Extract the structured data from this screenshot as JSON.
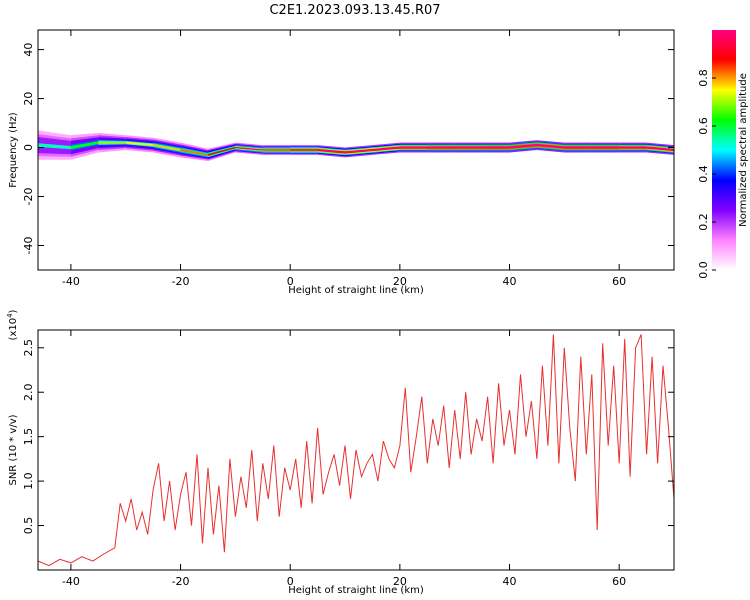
{
  "title": "C2E1.2023.093.13.45.R07",
  "chart_data": [
    {
      "type": "heatmap",
      "xlabel": "Height of straight line (km)",
      "ylabel": "Frequency (Hz)",
      "xlim": [
        -46,
        70
      ],
      "ylim": [
        -50,
        48
      ],
      "x_ticks": [
        -40,
        -20,
        0,
        20,
        40,
        60
      ],
      "y_ticks": [
        -40,
        -20,
        0,
        20,
        40
      ],
      "x_tick_labels": [
        "-40",
        "-20",
        "0",
        "20",
        "40",
        "60"
      ],
      "y_tick_labels": [
        "-40",
        "-20",
        "0",
        "20",
        "40"
      ],
      "grid": false,
      "colorbar": {
        "label": "Normalized spectral amplitude",
        "range": [
          0.0,
          1.0
        ],
        "ticks": [
          0.0,
          0.2,
          0.4,
          0.6,
          0.8
        ],
        "tick_labels": [
          "0.0",
          "0.2",
          "0.4",
          "0.6",
          "0.8"
        ],
        "colormap": [
          "#ffffff",
          "#ff80ff",
          "#8000ff",
          "#0000ff",
          "#00ffff",
          "#00ff00",
          "#ffff00",
          "#ff0000",
          "#ff0080"
        ]
      },
      "ridge": {
        "x": [
          -46,
          -40,
          -35,
          -30,
          -25,
          -20,
          -15,
          -10,
          -5,
          0,
          5,
          10,
          15,
          20,
          25,
          30,
          35,
          40,
          45,
          50,
          55,
          60,
          65,
          70
        ],
        "frequency": [
          1,
          0,
          2,
          2,
          1,
          -1,
          -3,
          0,
          -1,
          -1,
          -1,
          -2,
          -1,
          0,
          0,
          0,
          0,
          0,
          1,
          0,
          0,
          0,
          0,
          -1
        ],
        "spread": [
          6,
          5,
          4,
          3,
          3,
          3,
          2.5,
          2,
          2,
          2,
          2,
          2,
          2,
          2,
          2,
          2,
          2,
          2,
          2,
          2,
          2,
          2,
          2,
          2
        ],
        "amplitude": [
          0.3,
          0.35,
          0.4,
          0.45,
          0.45,
          0.5,
          0.5,
          0.6,
          0.65,
          0.7,
          0.75,
          0.85,
          0.8,
          0.85,
          0.9,
          0.9,
          0.9,
          0.92,
          0.9,
          0.9,
          0.92,
          0.9,
          0.88,
          0.85
        ]
      }
    },
    {
      "type": "line",
      "xlabel": "Height of straight line (km)",
      "ylabel": "SNR (10 * v/v)",
      "y_multiplier_label": "(x10",
      "y_multiplier_exp": "4",
      "xlim": [
        -46,
        70
      ],
      "ylim": [
        0.0,
        2.7
      ],
      "x_ticks": [
        -40,
        -20,
        0,
        20,
        40,
        60
      ],
      "y_ticks": [
        0.5,
        1.0,
        1.5,
        2.0,
        2.5
      ],
      "x_tick_labels": [
        "-40",
        "-20",
        "0",
        "20",
        "40",
        "60"
      ],
      "y_tick_labels": [
        "0.5",
        "1.0",
        "1.5",
        "2.0",
        "2.5"
      ],
      "grid": false,
      "line_color": "#e83030",
      "series": [
        {
          "x": [
            -46,
            -44,
            -42,
            -40,
            -38,
            -36,
            -34,
            -32,
            -31,
            -30,
            -29,
            -28,
            -27,
            -26,
            -25,
            -24,
            -23,
            -22,
            -21,
            -20,
            -19,
            -18,
            -17,
            -16,
            -15,
            -14,
            -13,
            -12,
            -11,
            -10,
            -9,
            -8,
            -7,
            -6,
            -5,
            -4,
            -3,
            -2,
            -1,
            0,
            1,
            2,
            3,
            4,
            5,
            6,
            7,
            8,
            9,
            10,
            11,
            12,
            13,
            14,
            15,
            16,
            17,
            18,
            19,
            20,
            21,
            22,
            23,
            24,
            25,
            26,
            27,
            28,
            29,
            30,
            31,
            32,
            33,
            34,
            35,
            36,
            37,
            38,
            39,
            40,
            41,
            42,
            43,
            44,
            45,
            46,
            47,
            48,
            49,
            50,
            51,
            52,
            53,
            54,
            55,
            56,
            57,
            58,
            59,
            60,
            61,
            62,
            63,
            64,
            65,
            66,
            67,
            68,
            69,
            70
          ],
          "values": [
            0.1,
            0.05,
            0.12,
            0.08,
            0.15,
            0.1,
            0.18,
            0.25,
            0.75,
            0.55,
            0.8,
            0.45,
            0.65,
            0.4,
            0.9,
            1.2,
            0.55,
            1.0,
            0.45,
            0.85,
            1.1,
            0.5,
            1.3,
            0.3,
            1.15,
            0.4,
            0.95,
            0.2,
            1.25,
            0.6,
            1.05,
            0.7,
            1.35,
            0.55,
            1.2,
            0.8,
            1.4,
            0.6,
            1.15,
            0.9,
            1.25,
            0.7,
            1.45,
            0.75,
            1.6,
            0.85,
            1.1,
            1.3,
            0.95,
            1.4,
            0.8,
            1.35,
            1.05,
            1.2,
            1.3,
            1.0,
            1.45,
            1.25,
            1.15,
            1.4,
            2.05,
            1.1,
            1.5,
            1.95,
            1.2,
            1.7,
            1.4,
            1.85,
            1.15,
            1.8,
            1.25,
            2.0,
            1.3,
            1.7,
            1.45,
            1.95,
            1.2,
            2.1,
            1.4,
            1.8,
            1.3,
            2.2,
            1.5,
            1.9,
            1.25,
            2.3,
            1.4,
            2.65,
            1.2,
            2.5,
            1.6,
            1.0,
            2.4,
            1.3,
            2.2,
            0.45,
            2.55,
            1.4,
            2.3,
            1.2,
            2.6,
            1.05,
            2.5,
            2.65,
            1.3,
            2.4,
            1.2,
            2.3,
            1.6,
            0.8
          ]
        }
      ]
    }
  ]
}
